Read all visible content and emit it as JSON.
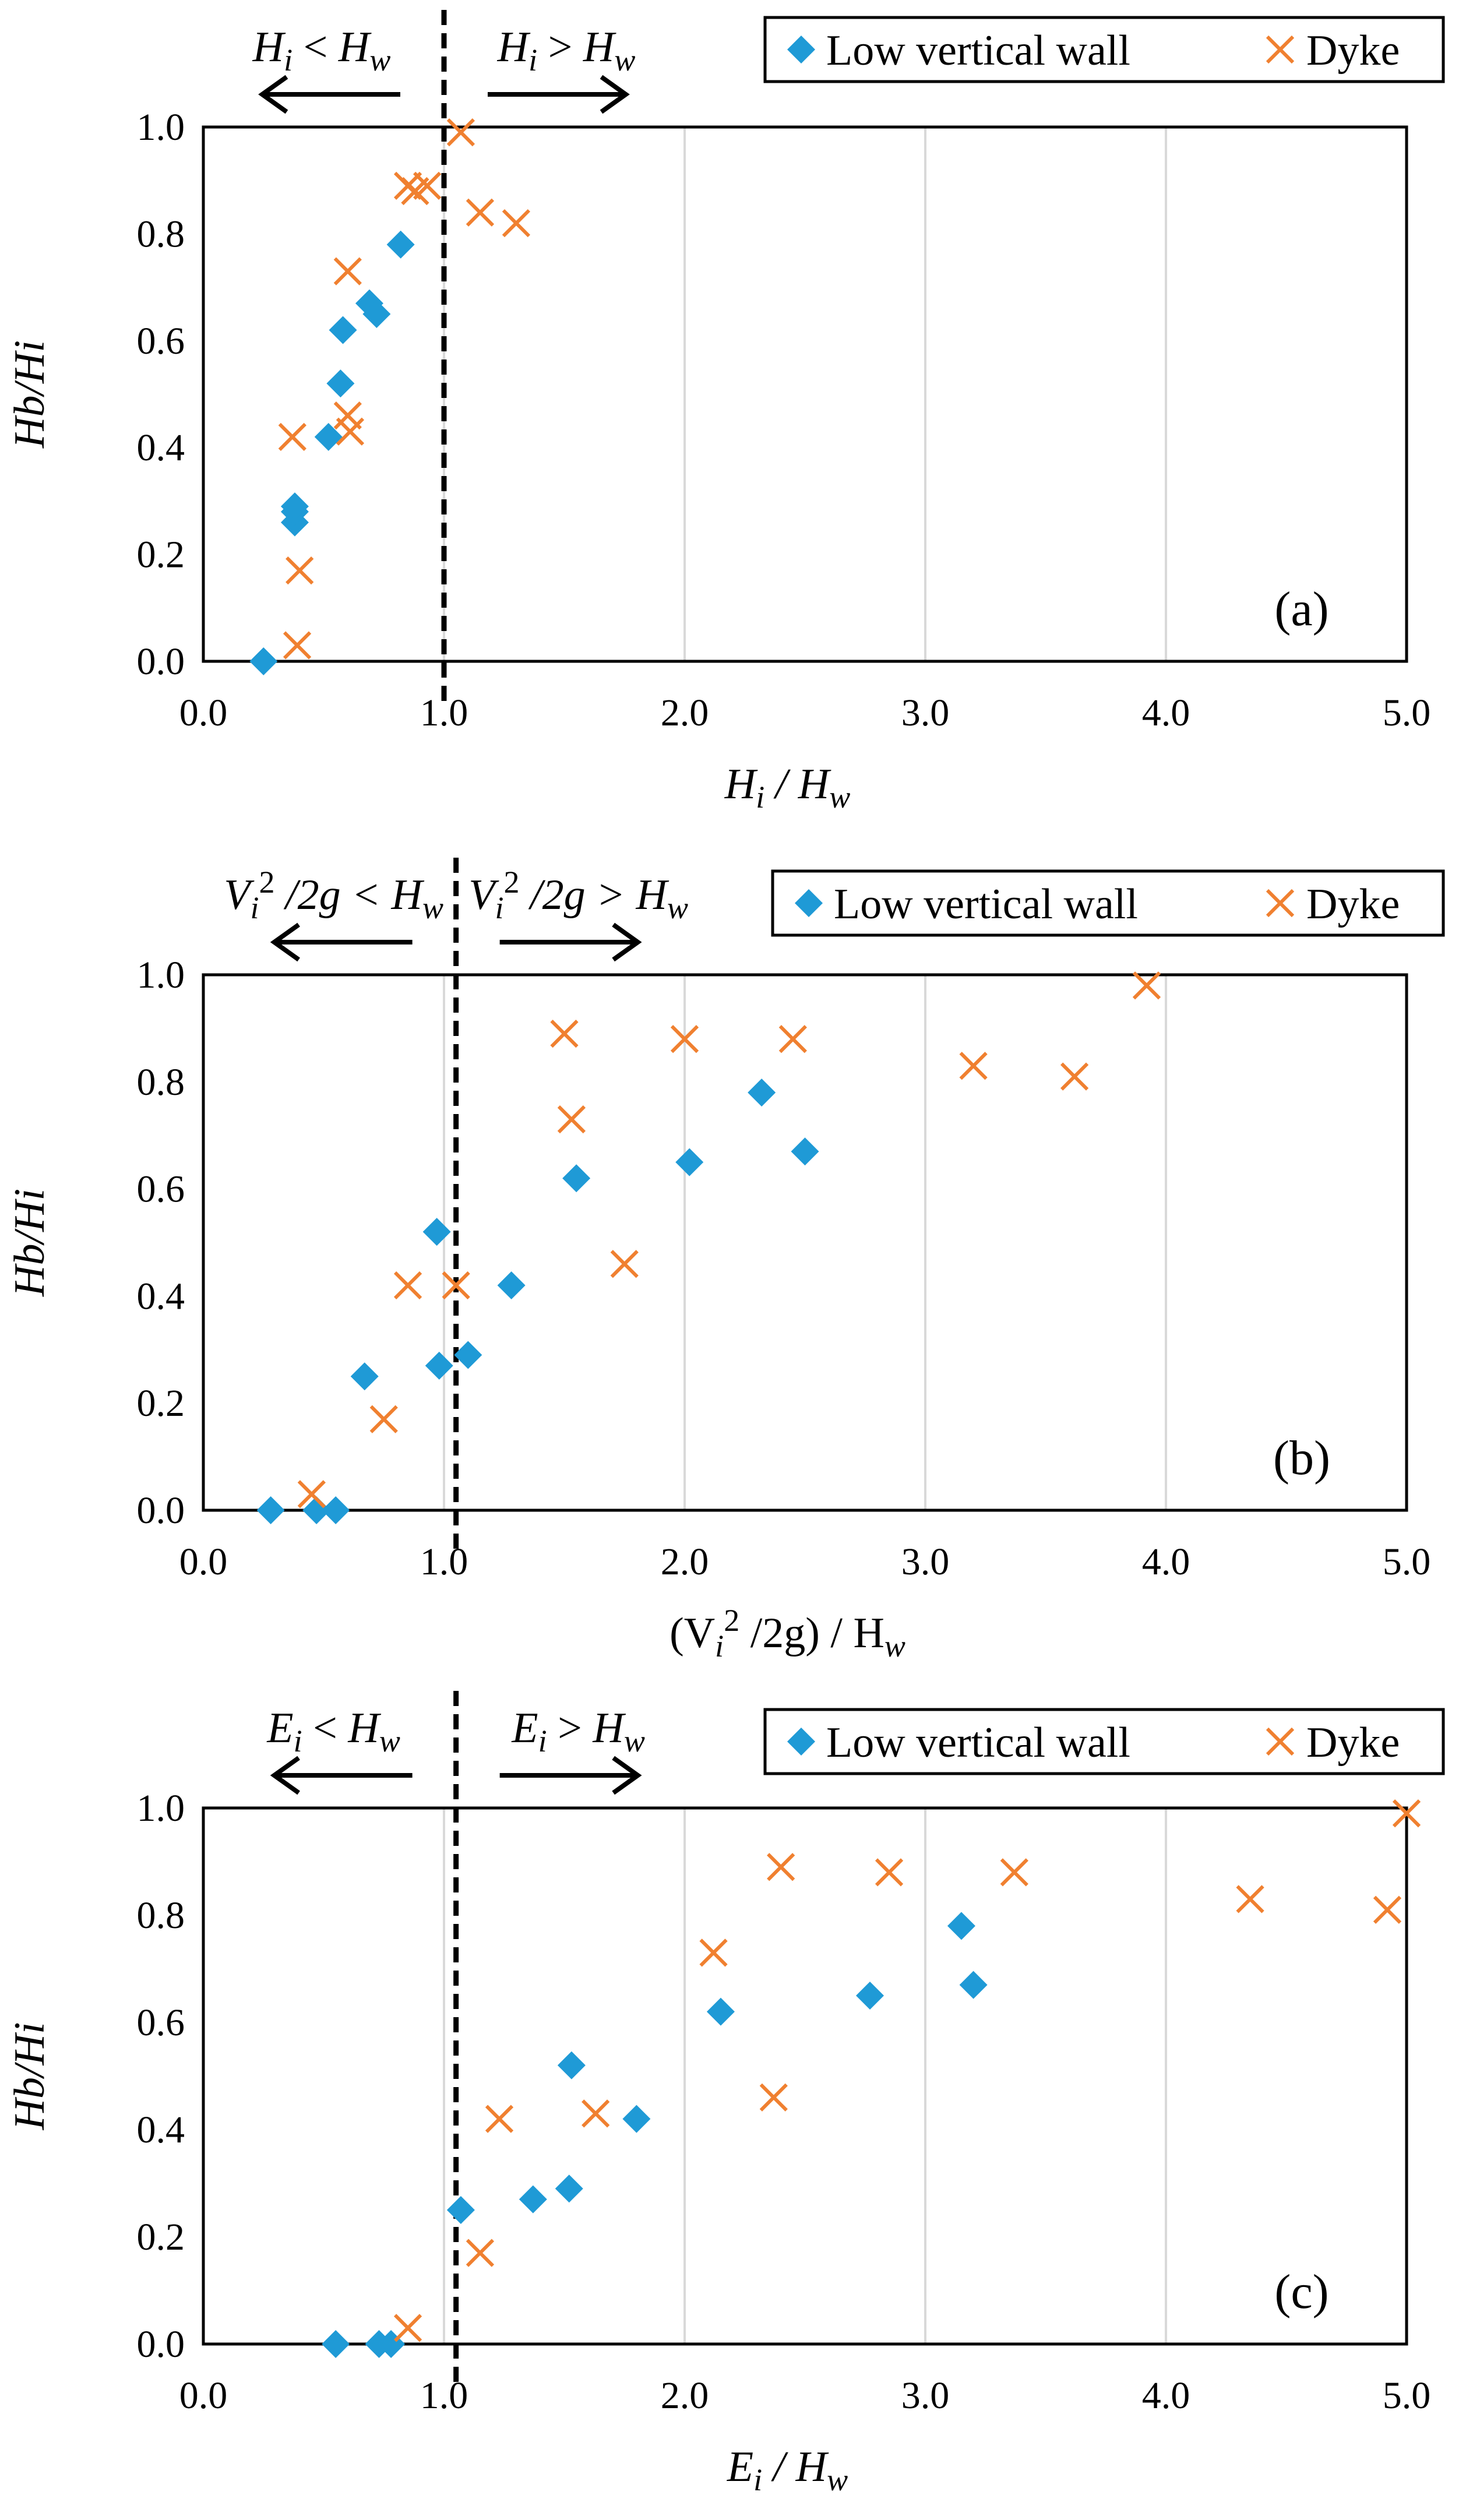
{
  "colors": {
    "wall": "#1f9ad6",
    "dyke": "#f08030",
    "grid": "#d9d9d9",
    "axis": "#000000"
  },
  "chart_data": [
    {
      "type": "scatter",
      "panel_label": "(a)",
      "xlabel": {
        "main": "H",
        "sub1": "i",
        "mid": " / H",
        "sub2": "w"
      },
      "ylabel": "Hb/Hi",
      "xlim": [
        0,
        5
      ],
      "ylim": [
        0,
        1
      ],
      "xticks": [
        "0.0",
        "1.0",
        "2.0",
        "3.0",
        "4.0",
        "5.0"
      ],
      "yticks": [
        "0.0",
        "0.2",
        "0.4",
        "0.6",
        "0.8",
        "1.0"
      ],
      "threshold_x": 1.0,
      "arrow_left_label": {
        "a": "H",
        "as": "i",
        "op": " < ",
        "b": "H",
        "bs": "w"
      },
      "arrow_right_label": {
        "a": "H",
        "as": "i",
        "op": " > ",
        "b": "H",
        "bs": "w"
      },
      "legend": {
        "wall": "Low vertical wall",
        "dyke": "Dyke"
      },
      "series": [
        {
          "name": "Low vertical wall",
          "marker": "diamond",
          "points": [
            [
              0.25,
              0.0
            ],
            [
              0.38,
              0.26
            ],
            [
              0.38,
              0.28
            ],
            [
              0.38,
              0.29
            ],
            [
              0.52,
              0.42
            ],
            [
              0.57,
              0.52
            ],
            [
              0.58,
              0.62
            ],
            [
              0.69,
              0.67
            ],
            [
              0.72,
              0.65
            ],
            [
              0.82,
              0.78
            ]
          ]
        },
        {
          "name": "Dyke",
          "marker": "x",
          "points": [
            [
              0.39,
              0.03
            ],
            [
              0.4,
              0.17
            ],
            [
              0.37,
              0.42
            ],
            [
              0.61,
              0.43
            ],
            [
              0.6,
              0.46
            ],
            [
              0.6,
              0.73
            ],
            [
              0.85,
              0.89
            ],
            [
              0.88,
              0.88
            ],
            [
              0.93,
              0.89
            ],
            [
              1.07,
              0.99
            ],
            [
              1.15,
              0.84
            ],
            [
              1.3,
              0.82
            ]
          ]
        }
      ]
    },
    {
      "type": "scatter",
      "panel_label": "(b)",
      "xlabel": {
        "pre": "(V",
        "sub1": "i",
        "sup": "2",
        "mid": " /2g) / H",
        "sub2": "w"
      },
      "ylabel": "Hb/Hi",
      "xlim": [
        0,
        5
      ],
      "ylim": [
        0,
        1
      ],
      "xticks": [
        "0.0",
        "1.0",
        "2.0",
        "3.0",
        "4.0",
        "5.0"
      ],
      "yticks": [
        "0.0",
        "0.2",
        "0.4",
        "0.6",
        "0.8",
        "1.0"
      ],
      "threshold_x": 1.05,
      "arrow_left_label": {
        "a": "V",
        "as": "i",
        "sup": "2",
        "op": " /2g < ",
        "b": "H",
        "bs": "w"
      },
      "arrow_right_label": {
        "a": "V",
        "as": "i",
        "sup": "2",
        "op": " /2g > ",
        "b": "H",
        "bs": "w"
      },
      "legend": {
        "wall": "Low vertical wall",
        "dyke": "Dyke"
      },
      "series": [
        {
          "name": "Low vertical wall",
          "marker": "diamond",
          "points": [
            [
              0.28,
              0.0
            ],
            [
              0.47,
              0.0
            ],
            [
              0.55,
              0.0
            ],
            [
              0.67,
              0.25
            ],
            [
              0.98,
              0.27
            ],
            [
              1.1,
              0.29
            ],
            [
              0.97,
              0.52
            ],
            [
              1.28,
              0.42
            ],
            [
              1.55,
              0.62
            ],
            [
              2.02,
              0.65
            ],
            [
              2.32,
              0.78
            ],
            [
              2.5,
              0.67
            ]
          ]
        },
        {
          "name": "Dyke",
          "marker": "x",
          "points": [
            [
              0.45,
              0.03
            ],
            [
              0.75,
              0.17
            ],
            [
              0.85,
              0.42
            ],
            [
              1.05,
              0.42
            ],
            [
              1.75,
              0.46
            ],
            [
              1.53,
              0.73
            ],
            [
              1.5,
              0.89
            ],
            [
              2.0,
              0.88
            ],
            [
              2.45,
              0.88
            ],
            [
              3.2,
              0.83
            ],
            [
              3.62,
              0.81
            ],
            [
              3.92,
              0.98
            ]
          ]
        }
      ]
    },
    {
      "type": "scatter",
      "panel_label": "(c)",
      "xlabel": {
        "main": "E",
        "sub1": "i",
        "mid": " / H",
        "sub2": "w"
      },
      "ylabel": "Hb/Hi",
      "xlim": [
        0,
        5
      ],
      "ylim": [
        0,
        1
      ],
      "xticks": [
        "0.0",
        "1.0",
        "2.0",
        "3.0",
        "4.0",
        "5.0"
      ],
      "yticks": [
        "0.0",
        "0.2",
        "0.4",
        "0.6",
        "0.8",
        "1.0"
      ],
      "threshold_x": 1.05,
      "arrow_left_label": {
        "a": "E",
        "as": "i",
        "op": " < ",
        "b": "H",
        "bs": "w"
      },
      "arrow_right_label": {
        "a": "E",
        "as": "i",
        "op": " > ",
        "b": "H",
        "bs": "w"
      },
      "legend": {
        "wall": "Low vertical wall",
        "dyke": "Dyke"
      },
      "series": [
        {
          "name": "Low vertical wall",
          "marker": "diamond",
          "points": [
            [
              0.55,
              0.0
            ],
            [
              0.73,
              0.0
            ],
            [
              0.78,
              0.0
            ],
            [
              1.07,
              0.25
            ],
            [
              1.37,
              0.27
            ],
            [
              1.52,
              0.29
            ],
            [
              1.53,
              0.52
            ],
            [
              1.8,
              0.42
            ],
            [
              2.15,
              0.62
            ],
            [
              2.77,
              0.65
            ],
            [
              3.15,
              0.78
            ],
            [
              3.2,
              0.67
            ]
          ]
        },
        {
          "name": "Dyke",
          "marker": "x",
          "points": [
            [
              0.85,
              0.03
            ],
            [
              1.15,
              0.17
            ],
            [
              1.23,
              0.42
            ],
            [
              1.63,
              0.43
            ],
            [
              2.37,
              0.46
            ],
            [
              2.12,
              0.73
            ],
            [
              2.4,
              0.89
            ],
            [
              2.85,
              0.88
            ],
            [
              3.37,
              0.88
            ],
            [
              4.35,
              0.83
            ],
            [
              4.92,
              0.81
            ],
            [
              5.0,
              0.99
            ]
          ]
        }
      ]
    }
  ]
}
